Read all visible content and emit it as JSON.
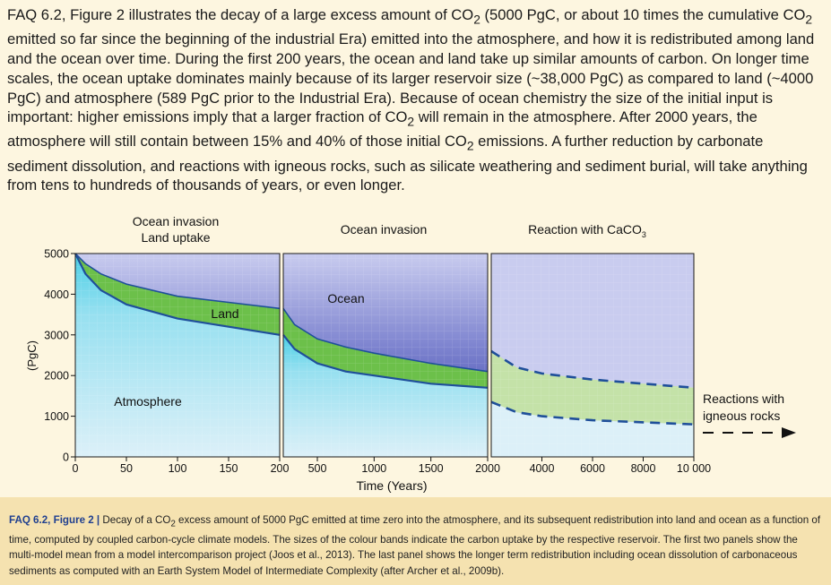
{
  "faq_text": {
    "runs": [
      "FAQ 6.2, Figure 2 illustrates the decay of a large excess amount of CO",
      "2",
      " (5000 PgC, or about 10 times the cumulative CO",
      "2",
      " emitted so far since the beginning of the industrial Era) emitted into the atmosphere, and how it is redistributed among land and the ocean over time. During the first 200 years, the ocean and land take up similar amounts of carbon. On longer time scales, the ocean uptake dominates mainly because of its larger reservoir size (~38,000 PgC) as compared to land (~4000 PgC) and atmosphere (589 PgC prior to the Industrial Era). Because of ocean chemistry the size of the initial input is important: higher emissions imply that a larger fraction of CO",
      "2",
      " will remain in the atmosphere. After 2000 years, the atmosphere will still contain between 15% and 40% of those initial CO",
      "2",
      " emissions. A further reduction by carbonate sediment dissolution, and reactions with igneous rocks, such as silicate weathering and sediment burial, will take anything from tens to hundreds of thousands of years, or even longer."
    ]
  },
  "caption": {
    "label": "FAQ 6.2, Figure 2 |",
    "runs": [
      "  Decay of a CO",
      "2",
      " excess amount of 5000 PgC emitted at time zero into the atmosphere, and its subsequent redistribution into land and ocean as a function of time, computed by coupled carbon-cycle climate models. The sizes of the colour bands indicate the carbon uptake by the respective reservoir. The first two panels show the multi-model mean from a model intercomparison project (Joos et al., 2013). The last panel shows the longer term redistribution including ocean dissolution of carbonaceous sediments as computed with an Earth System Model of Intermediate Complexity (after Archer et al., 2009b)."
    ]
  },
  "figure": {
    "xlabel": "Time (Years)",
    "ylabel": "(PgC)",
    "panel_titles": [
      "Ocean invasion",
      "Land uptake",
      "Ocean invasion",
      "Reaction with CaCO",
      "3"
    ],
    "labels": {
      "ocean": "Ocean",
      "land": "Land",
      "atmosphere": "Atmosphere",
      "reactions_1": "Reactions with",
      "reactions_2": "igneous rocks"
    }
  },
  "colors": {
    "page_bg": "#fdf6e0",
    "caption_bg": "#f5e2b0",
    "ocean_dark": "#2b33a0",
    "ocean_light": "#c9ccef",
    "land": "#6cc04a",
    "land_light": "#c4e2a8",
    "atmosphere": "#4ccfe6",
    "atmosphere_light": "#dcf0f8",
    "boundary_line": "#1f4f9a"
  },
  "chart_data": [
    {
      "type": "area",
      "panel": 1,
      "title": "Ocean invasion Land uptake",
      "xlim": [
        0,
        200
      ],
      "ylim": [
        0,
        5000
      ],
      "x_ticks": [
        "0",
        "50",
        "100",
        "150",
        "200"
      ],
      "y_ticks": [
        "0",
        "1000",
        "2000",
        "3000",
        "4000",
        "5000"
      ],
      "x": [
        0,
        10,
        25,
        50,
        100,
        150,
        200
      ],
      "series": [
        {
          "name": "Atmosphere",
          "values": [
            5000,
            4500,
            4100,
            3750,
            3400,
            3200,
            3000
          ]
        },
        {
          "name": "Land",
          "values": [
            5000,
            4750,
            4500,
            4250,
            3950,
            3800,
            3650
          ]
        }
      ]
    },
    {
      "type": "area",
      "panel": 2,
      "title": "Ocean invasion",
      "xlim": [
        200,
        2000
      ],
      "ylim": [
        0,
        5000
      ],
      "x_ticks": [
        "500",
        "1000",
        "1500",
        "2000"
      ],
      "x": [
        200,
        300,
        500,
        750,
        1000,
        1500,
        2000
      ],
      "series": [
        {
          "name": "Atmosphere",
          "values": [
            3000,
            2650,
            2300,
            2100,
            2000,
            1800,
            1700
          ]
        },
        {
          "name": "Land",
          "values": [
            3650,
            3250,
            2900,
            2700,
            2550,
            2300,
            2100
          ]
        }
      ]
    },
    {
      "type": "area",
      "panel": 3,
      "title": "Reaction with CaCO3",
      "xlim": [
        2000,
        10000
      ],
      "ylim": [
        0,
        5000
      ],
      "x_ticks": [
        "4000",
        "6000",
        "8000",
        "10 000"
      ],
      "x": [
        2000,
        3000,
        4000,
        6000,
        8000,
        10000
      ],
      "series": [
        {
          "name": "Lower",
          "values": [
            1350,
            1100,
            1000,
            900,
            850,
            800
          ]
        },
        {
          "name": "Upper",
          "values": [
            2600,
            2200,
            2050,
            1900,
            1800,
            1700
          ]
        }
      ]
    }
  ]
}
